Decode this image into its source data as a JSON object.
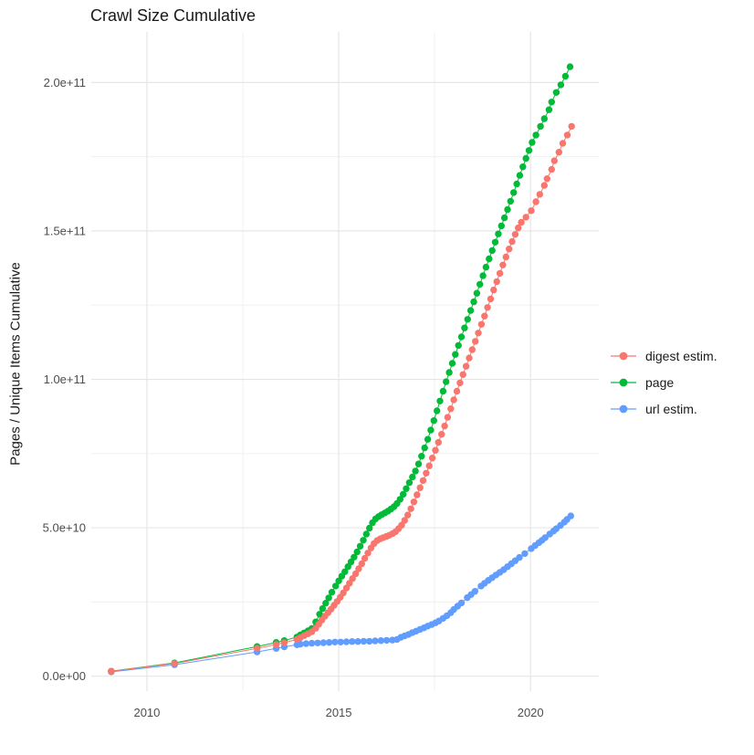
{
  "page_background": "#ffffff",
  "chart_data": {
    "type": "scatter",
    "title": "Crawl Size Cumulative",
    "xlabel": "",
    "ylabel": "Pages / Unique Items Cumulative",
    "grid": {
      "on": true,
      "major_color": "#e4e4e4",
      "minor_color": "#f0f0f0"
    },
    "axis_text_color": "#4d4d4d",
    "legend_position": "right",
    "value_unit_note": "point values stored in units of 1e9 (billions)",
    "x_domain": [
      2008.55,
      2021.78
    ],
    "y_domain_e9": [
      -5,
      217
    ],
    "x_major_ticks": [
      {
        "value": 2010,
        "label": "2010"
      },
      {
        "value": 2015,
        "label": "2015"
      },
      {
        "value": 2020,
        "label": "2020"
      }
    ],
    "x_minor_ticks": [
      2012.5,
      2017.5
    ],
    "y_major_ticks": [
      {
        "value_e9": 0,
        "label": "0.0e+00"
      },
      {
        "value_e9": 50,
        "label": "5.0e+10"
      },
      {
        "value_e9": 100,
        "label": "1.0e+11"
      },
      {
        "value_e9": 150,
        "label": "1.5e+11"
      },
      {
        "value_e9": 200,
        "label": "2.0e+11"
      }
    ],
    "y_minor_ticks_e9": [
      25,
      75,
      125,
      175
    ],
    "draw_order": [
      "url estim.",
      "page",
      "digest estim."
    ],
    "series": [
      {
        "name": "digest estim.",
        "color": "#F8766D",
        "points": [
          [
            2009.07,
            1.7
          ],
          [
            2010.72,
            4.3
          ],
          [
            2012.87,
            9.4
          ],
          [
            2013.37,
            10.7
          ],
          [
            2013.58,
            11.3
          ],
          [
            2013.91,
            12.4
          ],
          [
            2014.0,
            13.0
          ],
          [
            2014.1,
            13.7
          ],
          [
            2014.2,
            14.3
          ],
          [
            2014.3,
            15.0
          ],
          [
            2014.4,
            16.2
          ],
          [
            2014.48,
            17.5
          ],
          [
            2014.56,
            18.9
          ],
          [
            2014.64,
            20.2
          ],
          [
            2014.72,
            21.4
          ],
          [
            2014.8,
            22.6
          ],
          [
            2014.88,
            23.9
          ],
          [
            2014.96,
            25.2
          ],
          [
            2015.04,
            26.6
          ],
          [
            2015.12,
            28.1
          ],
          [
            2015.2,
            29.7
          ],
          [
            2015.28,
            31.3
          ],
          [
            2015.36,
            32.9
          ],
          [
            2015.44,
            34.5
          ],
          [
            2015.52,
            36.2
          ],
          [
            2015.6,
            37.9
          ],
          [
            2015.68,
            39.7
          ],
          [
            2015.76,
            41.5
          ],
          [
            2015.84,
            43.2
          ],
          [
            2015.92,
            44.7
          ],
          [
            2016.0,
            45.7
          ],
          [
            2016.08,
            46.3
          ],
          [
            2016.16,
            46.7
          ],
          [
            2016.24,
            47.1
          ],
          [
            2016.32,
            47.5
          ],
          [
            2016.4,
            48.0
          ],
          [
            2016.48,
            48.7
          ],
          [
            2016.56,
            49.7
          ],
          [
            2016.64,
            50.9
          ],
          [
            2016.72,
            52.5
          ],
          [
            2016.8,
            54.3
          ],
          [
            2016.88,
            56.4
          ],
          [
            2016.96,
            58.7
          ],
          [
            2017.04,
            61.1
          ],
          [
            2017.12,
            63.5
          ],
          [
            2017.2,
            65.9
          ],
          [
            2017.28,
            68.4
          ],
          [
            2017.36,
            70.9
          ],
          [
            2017.44,
            73.5
          ],
          [
            2017.52,
            76.1
          ],
          [
            2017.6,
            78.8
          ],
          [
            2017.68,
            81.5
          ],
          [
            2017.76,
            84.3
          ],
          [
            2017.84,
            87.2
          ],
          [
            2017.92,
            90.1
          ],
          [
            2018.0,
            93.1
          ],
          [
            2018.08,
            96.0
          ],
          [
            2018.16,
            98.8
          ],
          [
            2018.24,
            101.6
          ],
          [
            2018.32,
            104.4
          ],
          [
            2018.4,
            107.2
          ],
          [
            2018.48,
            110.0
          ],
          [
            2018.56,
            112.8
          ],
          [
            2018.64,
            115.6
          ],
          [
            2018.72,
            118.5
          ],
          [
            2018.8,
            121.3
          ],
          [
            2018.88,
            124.2
          ],
          [
            2018.96,
            127.1
          ],
          [
            2019.04,
            130.1
          ],
          [
            2019.12,
            132.9
          ],
          [
            2019.2,
            135.7
          ],
          [
            2019.28,
            138.5
          ],
          [
            2019.36,
            141.2
          ],
          [
            2019.44,
            143.9
          ],
          [
            2019.52,
            146.4
          ],
          [
            2019.6,
            148.8
          ],
          [
            2019.68,
            151.0
          ],
          [
            2019.76,
            152.9
          ],
          [
            2019.88,
            154.6
          ],
          [
            2020.02,
            156.8
          ],
          [
            2020.14,
            159.8
          ],
          [
            2020.24,
            162.3
          ],
          [
            2020.36,
            165.3
          ],
          [
            2020.43,
            167.6
          ],
          [
            2020.55,
            170.7
          ],
          [
            2020.62,
            173.6
          ],
          [
            2020.74,
            176.5
          ],
          [
            2020.84,
            179.5
          ],
          [
            2020.96,
            182.3
          ],
          [
            2021.07,
            185.2
          ]
        ]
      },
      {
        "name": "page",
        "color": "#00BA38",
        "points": [
          [
            2009.07,
            1.7
          ],
          [
            2010.72,
            4.5
          ],
          [
            2012.87,
            10.0
          ],
          [
            2013.37,
            11.4
          ],
          [
            2013.58,
            12.0
          ],
          [
            2013.91,
            13.2
          ],
          [
            2014.0,
            13.9
          ],
          [
            2014.1,
            14.6
          ],
          [
            2014.2,
            15.3
          ],
          [
            2014.3,
            16.1
          ],
          [
            2014.4,
            18.3
          ],
          [
            2014.5,
            20.9
          ],
          [
            2014.58,
            22.8
          ],
          [
            2014.66,
            24.6
          ],
          [
            2014.74,
            26.4
          ],
          [
            2014.82,
            28.3
          ],
          [
            2014.92,
            30.4
          ],
          [
            2015.0,
            32.1
          ],
          [
            2015.08,
            33.7
          ],
          [
            2015.16,
            35.2
          ],
          [
            2015.24,
            36.9
          ],
          [
            2015.32,
            38.5
          ],
          [
            2015.4,
            40.1
          ],
          [
            2015.48,
            41.9
          ],
          [
            2015.56,
            43.8
          ],
          [
            2015.64,
            45.8
          ],
          [
            2015.72,
            47.9
          ],
          [
            2015.8,
            49.9
          ],
          [
            2015.88,
            51.7
          ],
          [
            2015.96,
            53.0
          ],
          [
            2016.04,
            53.8
          ],
          [
            2016.12,
            54.4
          ],
          [
            2016.2,
            55.0
          ],
          [
            2016.28,
            55.6
          ],
          [
            2016.36,
            56.3
          ],
          [
            2016.44,
            57.1
          ],
          [
            2016.52,
            58.2
          ],
          [
            2016.6,
            59.6
          ],
          [
            2016.68,
            61.3
          ],
          [
            2016.76,
            63.2
          ],
          [
            2016.84,
            65.2
          ],
          [
            2016.92,
            67.1
          ],
          [
            2017.0,
            69.1
          ],
          [
            2017.08,
            71.5
          ],
          [
            2017.16,
            74.1
          ],
          [
            2017.24,
            76.9
          ],
          [
            2017.32,
            79.8
          ],
          [
            2017.4,
            82.9
          ],
          [
            2017.48,
            86.1
          ],
          [
            2017.56,
            89.4
          ],
          [
            2017.64,
            92.7
          ],
          [
            2017.72,
            96.0
          ],
          [
            2017.8,
            99.2
          ],
          [
            2017.88,
            102.3
          ],
          [
            2017.96,
            105.4
          ],
          [
            2018.04,
            108.4
          ],
          [
            2018.12,
            111.4
          ],
          [
            2018.2,
            114.3
          ],
          [
            2018.28,
            117.3
          ],
          [
            2018.36,
            120.2
          ],
          [
            2018.44,
            123.2
          ],
          [
            2018.52,
            126.1
          ],
          [
            2018.6,
            129.0
          ],
          [
            2018.68,
            132.0
          ],
          [
            2018.76,
            134.9
          ],
          [
            2018.84,
            137.8
          ],
          [
            2018.92,
            140.6
          ],
          [
            2019.0,
            143.4
          ],
          [
            2019.08,
            146.2
          ],
          [
            2019.16,
            149.0
          ],
          [
            2019.24,
            151.7
          ],
          [
            2019.32,
            154.4
          ],
          [
            2019.4,
            157.2
          ],
          [
            2019.48,
            160.0
          ],
          [
            2019.56,
            162.9
          ],
          [
            2019.64,
            165.8
          ],
          [
            2019.72,
            168.7
          ],
          [
            2019.8,
            171.6
          ],
          [
            2019.88,
            174.4
          ],
          [
            2019.96,
            177.1
          ],
          [
            2020.04,
            179.8
          ],
          [
            2020.14,
            182.3
          ],
          [
            2020.26,
            185.2
          ],
          [
            2020.36,
            187.8
          ],
          [
            2020.48,
            190.8
          ],
          [
            2020.55,
            193.4
          ],
          [
            2020.67,
            196.6
          ],
          [
            2020.79,
            199.2
          ],
          [
            2020.91,
            202.1
          ],
          [
            2021.03,
            205.3
          ]
        ]
      },
      {
        "name": "url estim.",
        "color": "#619CFF",
        "points": [
          [
            2009.07,
            1.5
          ],
          [
            2010.72,
            3.9
          ],
          [
            2012.87,
            8.2
          ],
          [
            2013.37,
            9.4
          ],
          [
            2013.58,
            9.9
          ],
          [
            2013.91,
            10.6
          ],
          [
            2014.0,
            10.8
          ],
          [
            2014.15,
            11.0
          ],
          [
            2014.3,
            11.1
          ],
          [
            2014.45,
            11.2
          ],
          [
            2014.6,
            11.3
          ],
          [
            2014.75,
            11.4
          ],
          [
            2014.9,
            11.5
          ],
          [
            2015.05,
            11.5
          ],
          [
            2015.2,
            11.6
          ],
          [
            2015.35,
            11.7
          ],
          [
            2015.5,
            11.7
          ],
          [
            2015.65,
            11.8
          ],
          [
            2015.8,
            11.8
          ],
          [
            2015.95,
            11.9
          ],
          [
            2016.1,
            12.0
          ],
          [
            2016.25,
            12.1
          ],
          [
            2016.4,
            12.2
          ],
          [
            2016.52,
            12.4
          ],
          [
            2016.62,
            13.1
          ],
          [
            2016.72,
            13.6
          ],
          [
            2016.82,
            14.1
          ],
          [
            2016.92,
            14.7
          ],
          [
            2017.02,
            15.2
          ],
          [
            2017.12,
            15.8
          ],
          [
            2017.22,
            16.3
          ],
          [
            2017.32,
            16.9
          ],
          [
            2017.42,
            17.4
          ],
          [
            2017.52,
            18.0
          ],
          [
            2017.61,
            18.6
          ],
          [
            2017.72,
            19.5
          ],
          [
            2017.82,
            20.4
          ],
          [
            2017.92,
            21.4
          ],
          [
            2018.0,
            22.5
          ],
          [
            2018.1,
            23.6
          ],
          [
            2018.2,
            24.7
          ],
          [
            2018.35,
            26.5
          ],
          [
            2018.45,
            27.5
          ],
          [
            2018.55,
            28.6
          ],
          [
            2018.71,
            30.4
          ],
          [
            2018.8,
            31.3
          ],
          [
            2018.9,
            32.3
          ],
          [
            2019.0,
            33.2
          ],
          [
            2019.1,
            34.1
          ],
          [
            2019.2,
            35.0
          ],
          [
            2019.3,
            35.9
          ],
          [
            2019.4,
            36.9
          ],
          [
            2019.5,
            37.9
          ],
          [
            2019.6,
            38.9
          ],
          [
            2019.71,
            40.0
          ],
          [
            2019.85,
            41.3
          ],
          [
            2020.02,
            43.0
          ],
          [
            2020.12,
            44.0
          ],
          [
            2020.22,
            45.0
          ],
          [
            2020.3,
            45.8
          ],
          [
            2020.38,
            46.7
          ],
          [
            2020.5,
            47.9
          ],
          [
            2020.6,
            48.9
          ],
          [
            2020.67,
            49.7
          ],
          [
            2020.78,
            50.8
          ],
          [
            2020.88,
            51.9
          ],
          [
            2020.95,
            52.8
          ],
          [
            2021.05,
            54.0
          ]
        ]
      }
    ]
  }
}
